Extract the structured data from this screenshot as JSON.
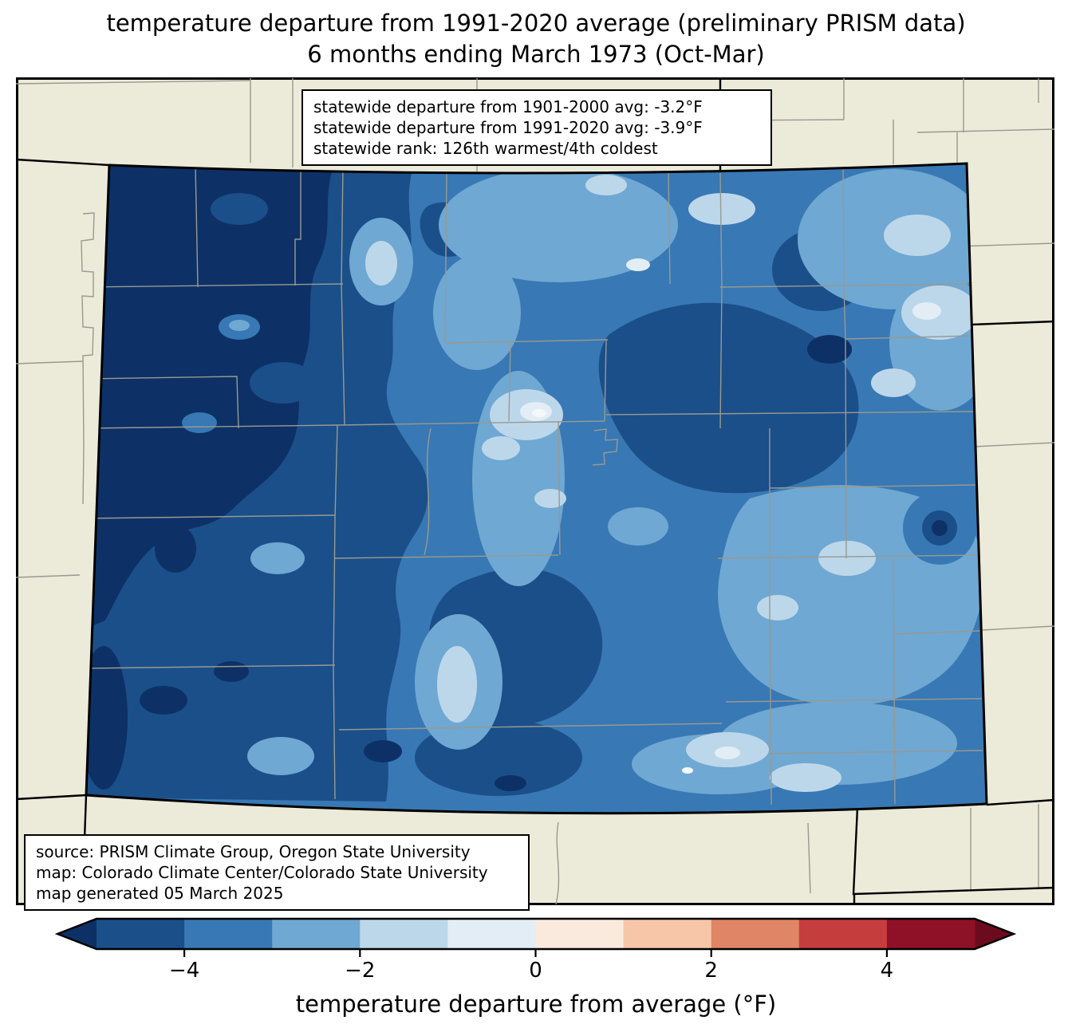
{
  "title": {
    "line1": "temperature departure from 1991-2020 average (preliminary PRISM data)",
    "line2": "6 months ending March 1973 (Oct-Mar)"
  },
  "stats_box": {
    "line1": "statewide departure from 1901-2000 avg: -3.2°F",
    "line2": "statewide departure from 1991-2020 avg: -3.9°F",
    "line3": "statewide rank: 126th warmest/4th coldest"
  },
  "source_box": {
    "line1": "source: PRISM Climate Group, Oregon State University",
    "line2": "map: Colorado Climate Center/Colorado State University",
    "line3": "map generated 05 March 2025"
  },
  "colorbar": {
    "label": "temperature departure from average (°F)",
    "tick_labels": [
      "−4",
      "−2",
      "0",
      "2",
      "4"
    ],
    "tick_values": [
      -4,
      -2,
      0,
      2,
      4
    ],
    "range_min": -5,
    "range_max": 5,
    "segment_edges": [
      -5,
      -4,
      -3,
      -2,
      -1,
      0,
      1,
      2,
      3,
      4,
      5
    ],
    "segment_colors": [
      "#1b4f8a",
      "#3878b4",
      "#6fa8d2",
      "#bdd7ea",
      "#e3edf5",
      "#faeadd",
      "#f7c6a9",
      "#e08565",
      "#c53e3d",
      "#8e1127"
    ],
    "extend_left_color": "#0d3166",
    "extend_right_color": "#6d0b1e"
  },
  "map": {
    "region": "Colorado",
    "projection_note": "state outline with county boundaries, neighboring state lines",
    "palette": {
      "deep": "#0d3166",
      "dark": "#1b4f8a",
      "base": "#3878b4",
      "light": "#6fa8d2",
      "pale": "#bdd7ea",
      "vpale": "#e3edf5",
      "white": "#f3f8fc",
      "outside": "#ecead9",
      "county_line": "#999990",
      "state_border": "#000000"
    }
  },
  "chart_data": {
    "type": "heatmap",
    "title": "temperature departure from 1991-2020 average (preliminary PRISM data)",
    "subtitle": "6 months ending March 1973 (Oct-Mar)",
    "colorbar_label": "temperature departure from average (°F)",
    "colorbar_ticks": [
      -4,
      -2,
      0,
      2,
      4
    ],
    "colorbar_range": [
      -5,
      5
    ],
    "statewide_departure_1901_2000_F": -3.2,
    "statewide_departure_1991_2020_F": -3.9,
    "statewide_rank": "126th warmest/4th coldest"
  }
}
